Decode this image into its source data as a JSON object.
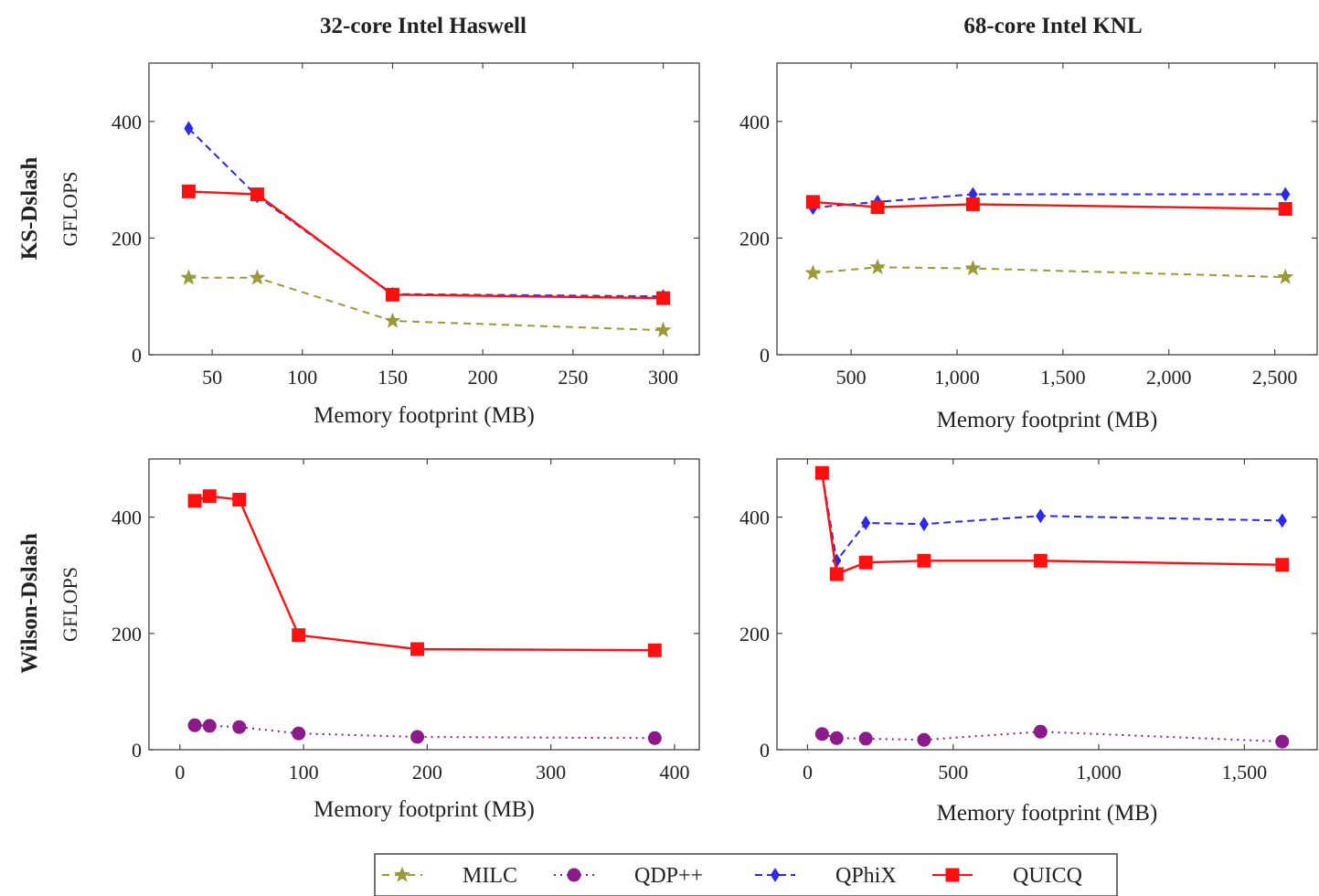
{
  "column_titles": [
    "32-core Intel Haswell",
    "68-core Intel KNL"
  ],
  "row_titles": [
    "KS-Dslash",
    "Wilson-Dslash"
  ],
  "colors": {
    "MILC": "#9a9a3a",
    "QDP++": "#8b1a8b",
    "QPhiX": "#2a2ae8",
    "QUICQ": "#ff1010"
  },
  "legend": [
    {
      "name": "MILC",
      "style": "dashed",
      "marker": "star"
    },
    {
      "name": "QDP++",
      "style": "dotted",
      "marker": "circle"
    },
    {
      "name": "QPhiX",
      "style": "dashed",
      "marker": "diamond"
    },
    {
      "name": "QUICQ",
      "style": "solid",
      "marker": "square"
    }
  ],
  "chart_data": [
    {
      "type": "line",
      "row": "KS-Dslash",
      "column": "32-core Intel Haswell",
      "xlabel": "Memory footprint (MB)",
      "ylabel": "GFLOPS",
      "xlim": [
        15,
        320
      ],
      "ylim": [
        0,
        500
      ],
      "xticks": [
        50,
        100,
        150,
        200,
        250,
        300
      ],
      "xtick_labels": [
        "50",
        "100",
        "150",
        "200",
        "250",
        "300"
      ],
      "yticks": [
        0,
        200,
        400
      ],
      "ytick_labels": [
        "0",
        "200",
        "400"
      ],
      "series": [
        {
          "name": "MILC",
          "x": [
            37,
            75,
            150,
            300
          ],
          "y": [
            132,
            132,
            58,
            42
          ]
        },
        {
          "name": "QPhiX",
          "x": [
            37,
            75,
            150,
            300
          ],
          "y": [
            388,
            272,
            104,
            100
          ]
        },
        {
          "name": "QUICQ",
          "x": [
            37,
            75,
            150,
            300
          ],
          "y": [
            280,
            275,
            103,
            97
          ]
        }
      ]
    },
    {
      "type": "line",
      "row": "KS-Dslash",
      "column": "68-core Intel KNL",
      "xlabel": "Memory footprint (MB)",
      "ylabel": "",
      "xlim": [
        150,
        2700
      ],
      "ylim": [
        0,
        500
      ],
      "xticks": [
        500,
        1000,
        1500,
        2000,
        2500
      ],
      "xtick_labels": [
        "500",
        "1,000",
        "1,500",
        "2,000",
        "2,500"
      ],
      "yticks": [
        0,
        200,
        400
      ],
      "ytick_labels": [
        "0",
        "200",
        "400"
      ],
      "series": [
        {
          "name": "MILC",
          "x": [
            320,
            625,
            1075,
            2550
          ],
          "y": [
            140,
            150,
            148,
            133
          ]
        },
        {
          "name": "QPhiX",
          "x": [
            320,
            625,
            1075,
            2550
          ],
          "y": [
            252,
            262,
            275,
            275
          ]
        },
        {
          "name": "QUICQ",
          "x": [
            320,
            625,
            1075,
            2550
          ],
          "y": [
            262,
            253,
            258,
            250
          ]
        }
      ]
    },
    {
      "type": "line",
      "row": "Wilson-Dslash",
      "column": "32-core Intel Haswell",
      "xlabel": "Memory footprint (MB)",
      "ylabel": "GFLOPS",
      "xlim": [
        -25,
        420
      ],
      "ylim": [
        0,
        500
      ],
      "xticks": [
        0,
        100,
        200,
        300,
        400
      ],
      "xtick_labels": [
        "0",
        "100",
        "200",
        "300",
        "400"
      ],
      "yticks": [
        0,
        200,
        400
      ],
      "ytick_labels": [
        "0",
        "200",
        "400"
      ],
      "series": [
        {
          "name": "QDP++",
          "x": [
            12,
            24,
            48,
            96,
            192,
            384
          ],
          "y": [
            42,
            41,
            39,
            28,
            22,
            20
          ]
        },
        {
          "name": "QUICQ",
          "x": [
            12,
            24,
            48,
            96,
            192,
            384
          ],
          "y": [
            428,
            436,
            430,
            197,
            173,
            171
          ]
        }
      ]
    },
    {
      "type": "line",
      "row": "Wilson-Dslash",
      "column": "68-core Intel KNL",
      "xlabel": "Memory footprint (MB)",
      "ylabel": "",
      "xlim": [
        -105,
        1750
      ],
      "ylim": [
        0,
        500
      ],
      "xticks": [
        0,
        500,
        1000,
        1500
      ],
      "xtick_labels": [
        "0",
        "500",
        "1,000",
        "1,500"
      ],
      "yticks": [
        0,
        200,
        400
      ],
      "ytick_labels": [
        "0",
        "200",
        "400"
      ],
      "series": [
        {
          "name": "QDP++",
          "x": [
            50,
            100,
            200,
            400,
            800,
            1630
          ],
          "y": [
            27,
            20,
            19,
            17,
            31,
            14
          ]
        },
        {
          "name": "QPhiX",
          "x": [
            50,
            100,
            200,
            400,
            800,
            1630
          ],
          "y": [
            475,
            325,
            390,
            388,
            402,
            394
          ]
        },
        {
          "name": "QUICQ",
          "x": [
            50,
            100,
            200,
            400,
            800,
            1630
          ],
          "y": [
            476,
            302,
            322,
            325,
            325,
            318
          ]
        }
      ]
    }
  ]
}
